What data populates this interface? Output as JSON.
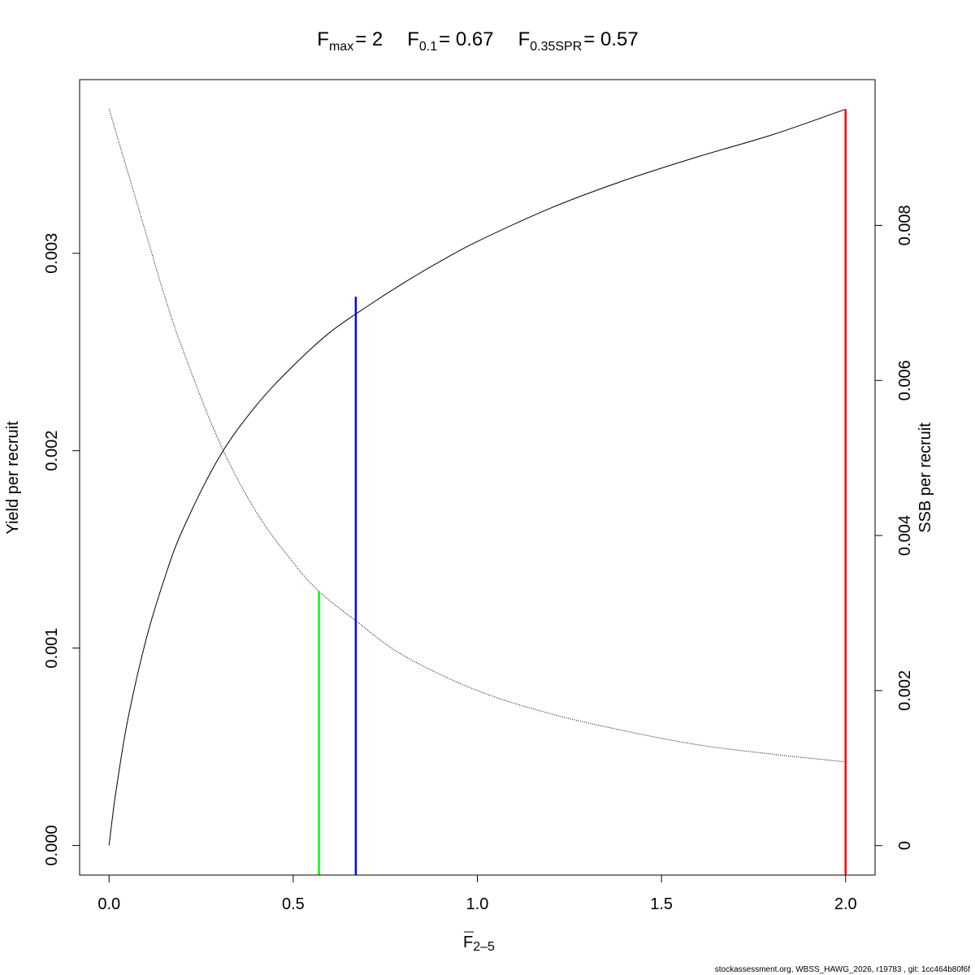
{
  "chart_data": {
    "type": "line",
    "title": {
      "parts": [
        {
          "base": "F",
          "sub": "max",
          "eq": "= 2"
        },
        {
          "base": "F",
          "sub": "0.1",
          "eq": "= 0.67"
        },
        {
          "base": "F",
          "sub": "0.35SPR",
          "eq": "= 0.57"
        }
      ]
    },
    "xlabel": {
      "base": "F",
      "sub": "2–5",
      "overline": true
    },
    "ylabel_left": "Yield per recruit",
    "ylabel_right": "SSB per recruit",
    "xlim": [
      -0.08,
      2.08
    ],
    "ylim_left": [
      -0.00015,
      0.00388
    ],
    "ylim_right": [
      -0.00038,
      0.00988
    ],
    "x_ticks": [
      "0.0",
      "0.5",
      "1.0",
      "1.5",
      "2.0"
    ],
    "x_tick_values": [
      0,
      0.5,
      1.0,
      1.5,
      2.0
    ],
    "y_left_ticks": [
      "0.000",
      "0.001",
      "0.002",
      "0.003"
    ],
    "y_left_tick_values": [
      0,
      0.001,
      0.002,
      0.003
    ],
    "y_right_ticks": [
      "0",
      "0.002",
      "0.004",
      "0.006",
      "0.008"
    ],
    "y_right_tick_values": [
      0,
      0.002,
      0.004,
      0.006,
      0.008
    ],
    "grid": false,
    "series": [
      {
        "axis": "left",
        "style": "solid",
        "color": "#000000",
        "x": [
          0,
          0.01,
          0.02,
          0.05,
          0.1,
          0.15,
          0.2,
          0.3,
          0.4,
          0.5,
          0.6,
          0.7,
          0.8,
          0.9,
          1.0,
          1.2,
          1.4,
          1.6,
          1.8,
          2.0
        ],
        "y": [
          0,
          0.000155,
          0.00029,
          0.00063,
          0.00104,
          0.00135,
          0.0016,
          0.00197,
          0.00223,
          0.00243,
          0.0026,
          0.00273,
          0.00285,
          0.00296,
          0.00306,
          0.00323,
          0.00337,
          0.00349,
          0.0036,
          0.00373
        ]
      },
      {
        "axis": "right",
        "style": "dotted",
        "color": "#000000",
        "x": [
          0,
          0.05,
          0.1,
          0.15,
          0.2,
          0.3,
          0.4,
          0.5,
          0.57,
          0.67,
          0.8,
          1.0,
          1.2,
          1.4,
          1.6,
          1.8,
          2.0
        ],
        "y": [
          0.0095,
          0.0087,
          0.0079,
          0.0071,
          0.0064,
          0.0052,
          0.0043,
          0.00365,
          0.00328,
          0.0029,
          0.00245,
          0.002,
          0.0017,
          0.00148,
          0.0013,
          0.00118,
          0.00108
        ]
      }
    ],
    "reference_lines": [
      {
        "x": 0.57,
        "y_top": 0.00328,
        "axis": "right",
        "color": "#00ff00"
      },
      {
        "x": 0.67,
        "y_top": 0.00278,
        "axis": "left",
        "color": "#0000ff"
      },
      {
        "x": 2.0,
        "y_top": 0.00373,
        "axis": "left",
        "color": "#ff0000"
      }
    ]
  },
  "footer": "stockassessment.org, WBSS_HAWG_2026, r19783 , git: 1cc464b80f6f"
}
